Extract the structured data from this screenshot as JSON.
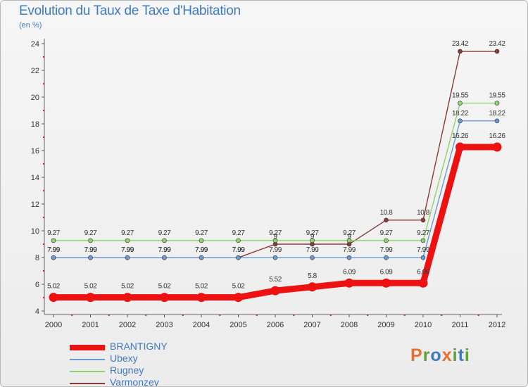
{
  "header": {
    "title": "Evolution du Taux de Taxe d'Habitation",
    "subtitle": "(en %)"
  },
  "brand": {
    "text": "Proxiti",
    "letters": [
      {
        "ch": "P",
        "color": "#e8702a"
      },
      {
        "ch": "r",
        "color": "#5aa23c"
      },
      {
        "ch": "o",
        "color": "#3f7ac2"
      },
      {
        "ch": "x",
        "color": "#e8702a"
      },
      {
        "ch": "i",
        "color": "#5aa23c"
      },
      {
        "ch": "t",
        "color": "#3f7ac2"
      },
      {
        "ch": "i",
        "color": "#5aa23c"
      }
    ]
  },
  "chart_data": {
    "type": "line",
    "title": "Evolution du Taux de Taxe d'Habitation",
    "ylabel": "(en %)",
    "xlabel": "",
    "ylim": [
      4,
      24
    ],
    "yticks": [
      4,
      6,
      8,
      10,
      12,
      14,
      16,
      18,
      20,
      22,
      24
    ],
    "grid": false,
    "legend": "bottom-left",
    "categories": [
      "2000",
      "2001",
      "2002",
      "2003",
      "2004",
      "2005",
      "2006",
      "2007",
      "2008",
      "2009",
      "2010",
      "2011",
      "2012"
    ],
    "series": [
      {
        "name": "Varmonzey",
        "color": "#8b3a3a",
        "values": [
          7.99,
          7.99,
          7.99,
          7.99,
          7.99,
          7.99,
          9,
          9,
          9,
          10.8,
          10.8,
          23.42,
          23.42
        ],
        "labels": [
          "7.99",
          "7.99",
          "7.99",
          "7.99",
          "7.99",
          "7.99",
          "9",
          "9",
          "9",
          "10.8",
          "10.8",
          "23.42",
          "23.42"
        ]
      },
      {
        "name": "Ubexy",
        "color": "#6b9bd1",
        "values": [
          7.99,
          7.99,
          7.99,
          7.99,
          7.99,
          7.99,
          7.99,
          7.99,
          7.99,
          7.99,
          7.99,
          18.22,
          18.22
        ],
        "labels": [
          "7.99",
          "7.99",
          "7.99",
          "7.99",
          "7.99",
          "7.99",
          "7.99",
          "7.99",
          "7.99",
          "7.99",
          "7.99",
          "18.22",
          "18.22"
        ]
      },
      {
        "name": "Rugney",
        "color": "#8fd36b",
        "values": [
          9.27,
          9.27,
          9.27,
          9.27,
          9.27,
          9.27,
          9.27,
          9.27,
          9.27,
          9.27,
          9.27,
          19.55,
          19.55
        ],
        "labels": [
          "9.27",
          "9.27",
          "9.27",
          "9.27",
          "9.27",
          "9.27",
          "9.27",
          "9.27",
          "9.27",
          "9.27",
          "9.27",
          "19.55",
          "19.55"
        ]
      },
      {
        "name": "BRANTIGNY",
        "color": "#ee1111",
        "values": [
          5.02,
          5.02,
          5.02,
          5.02,
          5.02,
          5.02,
          5.52,
          5.8,
          6.09,
          6.09,
          6.09,
          16.26,
          16.26
        ],
        "labels": [
          "5.02",
          "5.02",
          "5.02",
          "5.02",
          "5.02",
          "5.02",
          "5.52",
          "5.8",
          "6.09",
          "6.09",
          "6.09",
          "16.26",
          "16.26"
        ]
      }
    ],
    "legend_order": [
      "BRANTIGNY",
      "Ubexy",
      "Rugney",
      "Varmonzey"
    ]
  }
}
